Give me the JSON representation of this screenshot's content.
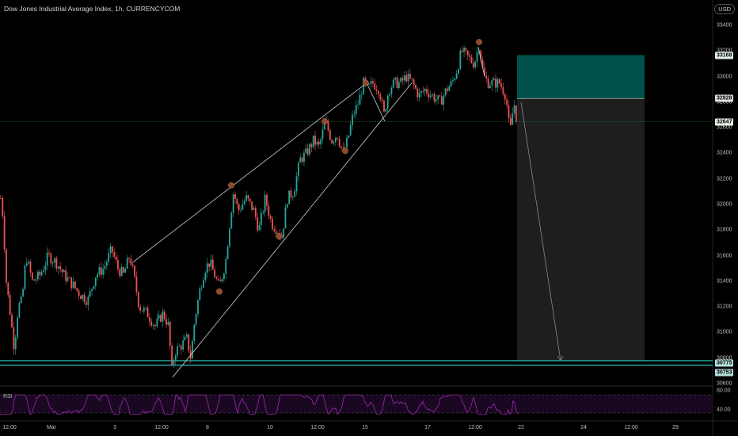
{
  "header": {
    "title": "Dow Jones Industrial Average Index, 1h, CURRENCYCOM",
    "currency": "USD"
  },
  "price_axis": {
    "ticks": [
      "33400",
      "33200",
      "33000",
      "32800",
      "32600",
      "32400",
      "32200",
      "32000",
      "31800",
      "31600",
      "31400",
      "31200",
      "31000",
      "30800",
      "30600"
    ],
    "labels": {
      "target_top": "33168",
      "entry": "32828",
      "current": "32647",
      "stop_a": "30775",
      "stop_b": "30753"
    }
  },
  "time_axis": {
    "ticks": [
      "12:00",
      "Mar",
      "3",
      "12:00",
      "8",
      "10",
      "12:00",
      "15",
      "17",
      "12:00",
      "22",
      "24",
      "12:00",
      "29"
    ]
  },
  "rsi": {
    "label": "RSI",
    "ticks": [
      "80.00",
      "40.00"
    ]
  },
  "colors": {
    "bull": "#26a69a",
    "bear": "#ef5350",
    "rsi": "#9c27b0",
    "target_box": "#00514c",
    "stop_box": "#1e1e1e"
  },
  "chart_data": {
    "type": "candlestick",
    "title": "Dow Jones Industrial Average Index, 1h, CURRENCYCOM",
    "y_axis_range": [
      30600,
      33400
    ],
    "price_path": [
      [
        0,
        32050
      ],
      [
        3,
        31900
      ],
      [
        7,
        31400
      ],
      [
        12,
        31150
      ],
      [
        17,
        30880
      ],
      [
        22,
        31200
      ],
      [
        27,
        31250
      ],
      [
        32,
        31600
      ],
      [
        40,
        31400
      ],
      [
        50,
        31450
      ],
      [
        60,
        31600
      ],
      [
        70,
        31550
      ],
      [
        80,
        31450
      ],
      [
        90,
        31380
      ],
      [
        100,
        31300
      ],
      [
        110,
        31250
      ],
      [
        120,
        31450
      ],
      [
        130,
        31500
      ],
      [
        140,
        31650
      ],
      [
        148,
        31500
      ],
      [
        155,
        31450
      ],
      [
        163,
        31600
      ],
      [
        168,
        31450
      ],
      [
        175,
        31200
      ],
      [
        185,
        31150
      ],
      [
        195,
        31050
      ],
      [
        205,
        31150
      ],
      [
        212,
        31050
      ],
      [
        216,
        30700
      ],
      [
        220,
        30850
      ],
      [
        228,
        30900
      ],
      [
        235,
        30950
      ],
      [
        240,
        30800
      ],
      [
        245,
        31100
      ],
      [
        252,
        31350
      ],
      [
        258,
        31500
      ],
      [
        264,
        31550
      ],
      [
        270,
        31450
      ],
      [
        276,
        31350
      ],
      [
        284,
        31550
      ],
      [
        290,
        31900
      ],
      [
        294,
        32100
      ],
      [
        300,
        31950
      ],
      [
        310,
        32050
      ],
      [
        320,
        31950
      ],
      [
        326,
        31800
      ],
      [
        334,
        32050
      ],
      [
        342,
        31850
      ],
      [
        350,
        31800
      ],
      [
        355,
        31750
      ],
      [
        362,
        32050
      ],
      [
        370,
        32100
      ],
      [
        378,
        32350
      ],
      [
        386,
        32400
      ],
      [
        395,
        32500
      ],
      [
        402,
        32450
      ],
      [
        410,
        32650
      ],
      [
        418,
        32500
      ],
      [
        425,
        32550
      ],
      [
        432,
        32400
      ],
      [
        438,
        32500
      ],
      [
        445,
        32700
      ],
      [
        452,
        32800
      ],
      [
        458,
        32950
      ],
      [
        463,
        32900
      ],
      [
        470,
        32950
      ],
      [
        478,
        32900
      ],
      [
        484,
        32700
      ],
      [
        490,
        32900
      ],
      [
        497,
        32950
      ],
      [
        505,
        32950
      ],
      [
        512,
        33000
      ],
      [
        520,
        32950
      ],
      [
        528,
        32850
      ],
      [
        536,
        32900
      ],
      [
        545,
        32850
      ],
      [
        555,
        32800
      ],
      [
        563,
        32900
      ],
      [
        570,
        32950
      ],
      [
        576,
        33050
      ],
      [
        582,
        33200
      ],
      [
        590,
        33150
      ],
      [
        598,
        33100
      ],
      [
        604,
        33250
      ],
      [
        610,
        33000
      ],
      [
        616,
        32950
      ],
      [
        622,
        32950
      ],
      [
        630,
        32950
      ],
      [
        638,
        32850
      ],
      [
        643,
        32550
      ],
      [
        648,
        32800
      ],
      [
        652,
        32650
      ]
    ],
    "rising_wedge": {
      "upper": [
        [
          168,
          31550
        ],
        [
          463,
          32950
        ]
      ],
      "lower": [
        [
          218,
          30650
        ],
        [
          520,
          32950
        ]
      ]
    },
    "swing_points": [
      [
        292,
        32150
      ],
      [
        277,
        31320
      ],
      [
        353,
        31750
      ],
      [
        410,
        32650
      ],
      [
        436,
        32420
      ],
      [
        462,
        32950
      ],
      [
        605,
        33270
      ]
    ],
    "short_position": {
      "entry": 32828,
      "target_top": 33168,
      "stop": 30775,
      "support": 30753
    },
    "rsi_range": [
      0,
      100
    ],
    "grid": false
  }
}
